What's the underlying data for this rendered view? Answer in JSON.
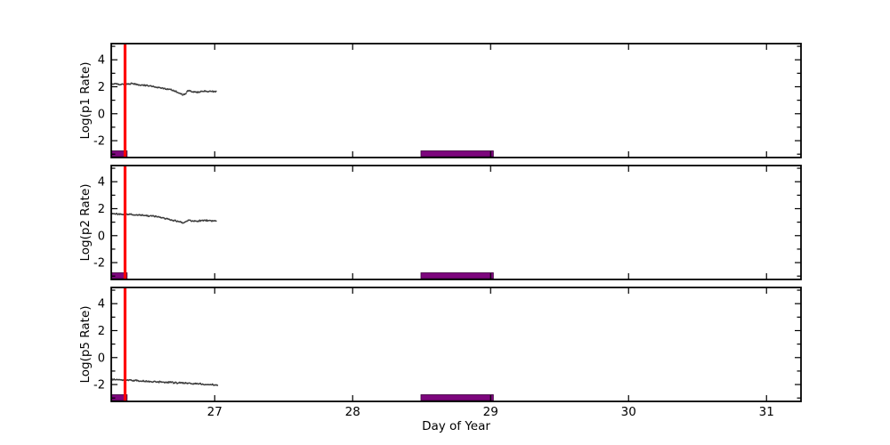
{
  "figure": {
    "background": "#ffffff"
  },
  "chart_data": {
    "type": "line",
    "title": "",
    "xlabel": "Day of Year",
    "xlim": [
      26.25,
      31.25
    ],
    "xticks": [
      27,
      28,
      29,
      30,
      31
    ],
    "ylim": [
      -3.25,
      5.2
    ],
    "yticks_major": [
      -2,
      0,
      2,
      4
    ],
    "yticks_minor": [
      -3,
      -1,
      1,
      3,
      5
    ],
    "grid": false,
    "legend": "none",
    "colors": {
      "frame": "#000000",
      "trace": "#3c3c3c",
      "vline": "#ff0000",
      "span_fill": "#7d067d",
      "span_edge": "#3a023a",
      "text": "#000000"
    },
    "vline_x": 26.35,
    "spans": [
      {
        "x0": 26.25,
        "x1": 26.365
      },
      {
        "x0": 28.495,
        "x1": 29.02
      }
    ],
    "panels": [
      {
        "ylabel": "Log(p1 Rate)",
        "series": [
          [
            26.25,
            2.22
          ],
          [
            26.29,
            2.19
          ],
          [
            26.33,
            2.18
          ],
          [
            26.37,
            2.2
          ],
          [
            26.41,
            2.25
          ],
          [
            26.44,
            2.14
          ],
          [
            26.48,
            2.11
          ],
          [
            26.52,
            2.08
          ],
          [
            26.56,
            2.02
          ],
          [
            26.6,
            1.92
          ],
          [
            26.64,
            1.85
          ],
          [
            26.68,
            1.78
          ],
          [
            26.72,
            1.65
          ],
          [
            26.75,
            1.5
          ],
          [
            26.77,
            1.4
          ],
          [
            26.79,
            1.46
          ],
          [
            26.8,
            1.72
          ],
          [
            26.82,
            1.7
          ],
          [
            26.85,
            1.6
          ],
          [
            26.88,
            1.6
          ],
          [
            26.92,
            1.68
          ],
          [
            26.95,
            1.64
          ],
          [
            26.98,
            1.66
          ],
          [
            27.01,
            1.63
          ]
        ]
      },
      {
        "ylabel": "Log(p2 Rate)",
        "series": [
          [
            26.25,
            1.62
          ],
          [
            26.3,
            1.6
          ],
          [
            26.34,
            1.56
          ],
          [
            26.38,
            1.59
          ],
          [
            26.42,
            1.55
          ],
          [
            26.46,
            1.52
          ],
          [
            26.5,
            1.49
          ],
          [
            26.55,
            1.45
          ],
          [
            26.6,
            1.37
          ],
          [
            26.64,
            1.28
          ],
          [
            26.68,
            1.18
          ],
          [
            26.72,
            1.1
          ],
          [
            26.75,
            1.02
          ],
          [
            26.77,
            0.96
          ],
          [
            26.79,
            1.0
          ],
          [
            26.81,
            1.17
          ],
          [
            26.84,
            1.08
          ],
          [
            26.87,
            1.06
          ],
          [
            26.9,
            1.12
          ],
          [
            26.93,
            1.14
          ],
          [
            26.96,
            1.1
          ],
          [
            26.99,
            1.09
          ],
          [
            27.01,
            1.07
          ]
        ]
      },
      {
        "ylabel": "Log(p5 Rate)",
        "series": [
          [
            26.25,
            -1.6
          ],
          [
            26.3,
            -1.63
          ],
          [
            26.35,
            -1.65
          ],
          [
            26.4,
            -1.69
          ],
          [
            26.45,
            -1.72
          ],
          [
            26.5,
            -1.75
          ],
          [
            26.55,
            -1.78
          ],
          [
            26.6,
            -1.81
          ],
          [
            26.65,
            -1.83
          ],
          [
            26.7,
            -1.86
          ],
          [
            26.75,
            -1.88
          ],
          [
            26.8,
            -1.9
          ],
          [
            26.85,
            -1.93
          ],
          [
            26.9,
            -1.96
          ],
          [
            26.95,
            -1.99
          ],
          [
            27.0,
            -2.02
          ],
          [
            27.02,
            -2.03
          ]
        ]
      }
    ]
  }
}
